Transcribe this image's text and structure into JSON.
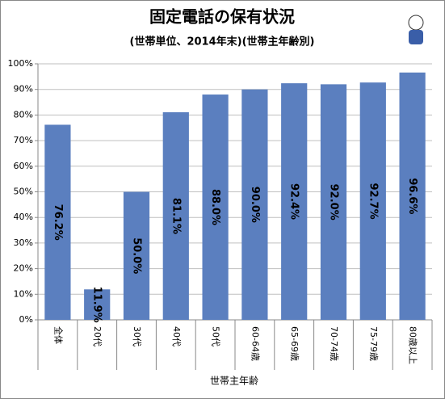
{
  "chart_data": {
    "type": "bar",
    "title": "固定電話の保有状況",
    "subtitle": "(世帯単位、2014年末)(世帯主年齢別)",
    "x_label": "世帯主年齢",
    "categories": [
      "全体",
      "20代",
      "30代",
      "40代",
      "50代",
      "60-64歳",
      "65-69歳",
      "70-74歳",
      "75-79歳",
      "80歳以上"
    ],
    "values": [
      76.2,
      11.9,
      50.0,
      81.1,
      88.0,
      90.0,
      92.4,
      92.0,
      92.7,
      96.6
    ],
    "value_labels": [
      "76.2%",
      "11.9%",
      "50.0%",
      "81.1%",
      "88.0%",
      "90.0%",
      "92.4%",
      "92.0%",
      "92.7%",
      "96.6%"
    ],
    "color": "#5b7fbf",
    "ylim": [
      0,
      100
    ],
    "yticks": [
      {
        "value": 0,
        "label": "0%"
      },
      {
        "value": 10,
        "label": "10%"
      },
      {
        "value": 20,
        "label": "20%"
      },
      {
        "value": 30,
        "label": "30%"
      },
      {
        "value": 40,
        "label": "40%"
      },
      {
        "value": 50,
        "label": "50%"
      },
      {
        "value": 60,
        "label": "60%"
      },
      {
        "value": 70,
        "label": "70%"
      },
      {
        "value": 80,
        "label": "80%"
      },
      {
        "value": 90,
        "label": "90%"
      },
      {
        "value": 100,
        "label": "100%"
      }
    ],
    "grid": true
  }
}
